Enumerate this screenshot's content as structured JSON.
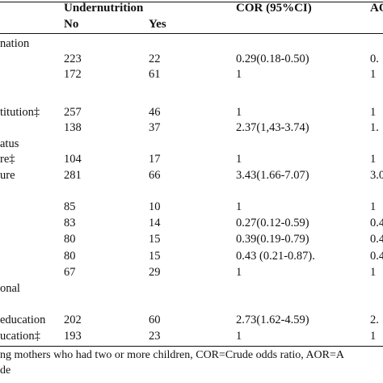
{
  "table": {
    "headers": {
      "undernutrition": "Undernutrition",
      "cor": "COR (95%CI)",
      "aor_partial": "AO",
      "no": "No",
      "yes": "Yes"
    },
    "rows": [
      {
        "label": "nation",
        "no": "",
        "yes": "",
        "cor": "",
        "aor": ""
      },
      {
        "label": "",
        "no": "223",
        "yes": "22",
        "cor": "0.29(0.18-0.50)",
        "aor": "0."
      },
      {
        "label": "",
        "no": "172",
        "yes": "61",
        "cor": "1",
        "aor": "1"
      },
      {
        "label": "titution‡",
        "no": "257",
        "yes": "46",
        "cor": "1",
        "aor": "1"
      },
      {
        "label": "",
        "no": "138",
        "yes": "37",
        "cor": "2.37(1,43-3.74)",
        "aor": "1."
      },
      {
        "label": "atus",
        "no": "",
        "yes": "",
        "cor": "",
        "aor": ""
      },
      {
        "label": "re‡",
        "no": "104",
        "yes": "17",
        "cor": "1",
        "aor": "1"
      },
      {
        "label": "ure",
        "no": "281",
        "yes": "66",
        "cor": "3.43(1.66-7.07)",
        "aor": "3.0"
      },
      {
        "label": "",
        "no": "85",
        "yes": "10",
        "cor": "1",
        "aor": "1"
      },
      {
        "label": "",
        "no": "83",
        "yes": "14",
        "cor": "0.27(0.12-0.59)",
        "aor": "0.4"
      },
      {
        "label": "",
        "no": "80",
        "yes": "15",
        "cor": "0.39(0.19-0.79)",
        "aor": "0.4"
      },
      {
        "label": "",
        "no": "80",
        "yes": "15",
        "cor": "0.43 (0.21-0.87).",
        "aor": "0.4"
      },
      {
        "label": "",
        "no": "67",
        "yes": "29",
        "cor": "1",
        "aor": "1"
      },
      {
        "label": "onal",
        "no": "",
        "yes": "",
        "cor": "",
        "aor": ""
      },
      {
        "label": "education",
        "no": "202",
        "yes": "60",
        "cor": "2.73(1.62-4.59)",
        "aor": "2."
      },
      {
        "label": "ucation‡",
        "no": "193",
        "yes": "23",
        "cor": "1",
        "aor": "1"
      }
    ]
  },
  "footnote": {
    "line1": "ng mothers who had two or more children, COR=Crude odds ratio, AOR=A",
    "line2": "de"
  }
}
